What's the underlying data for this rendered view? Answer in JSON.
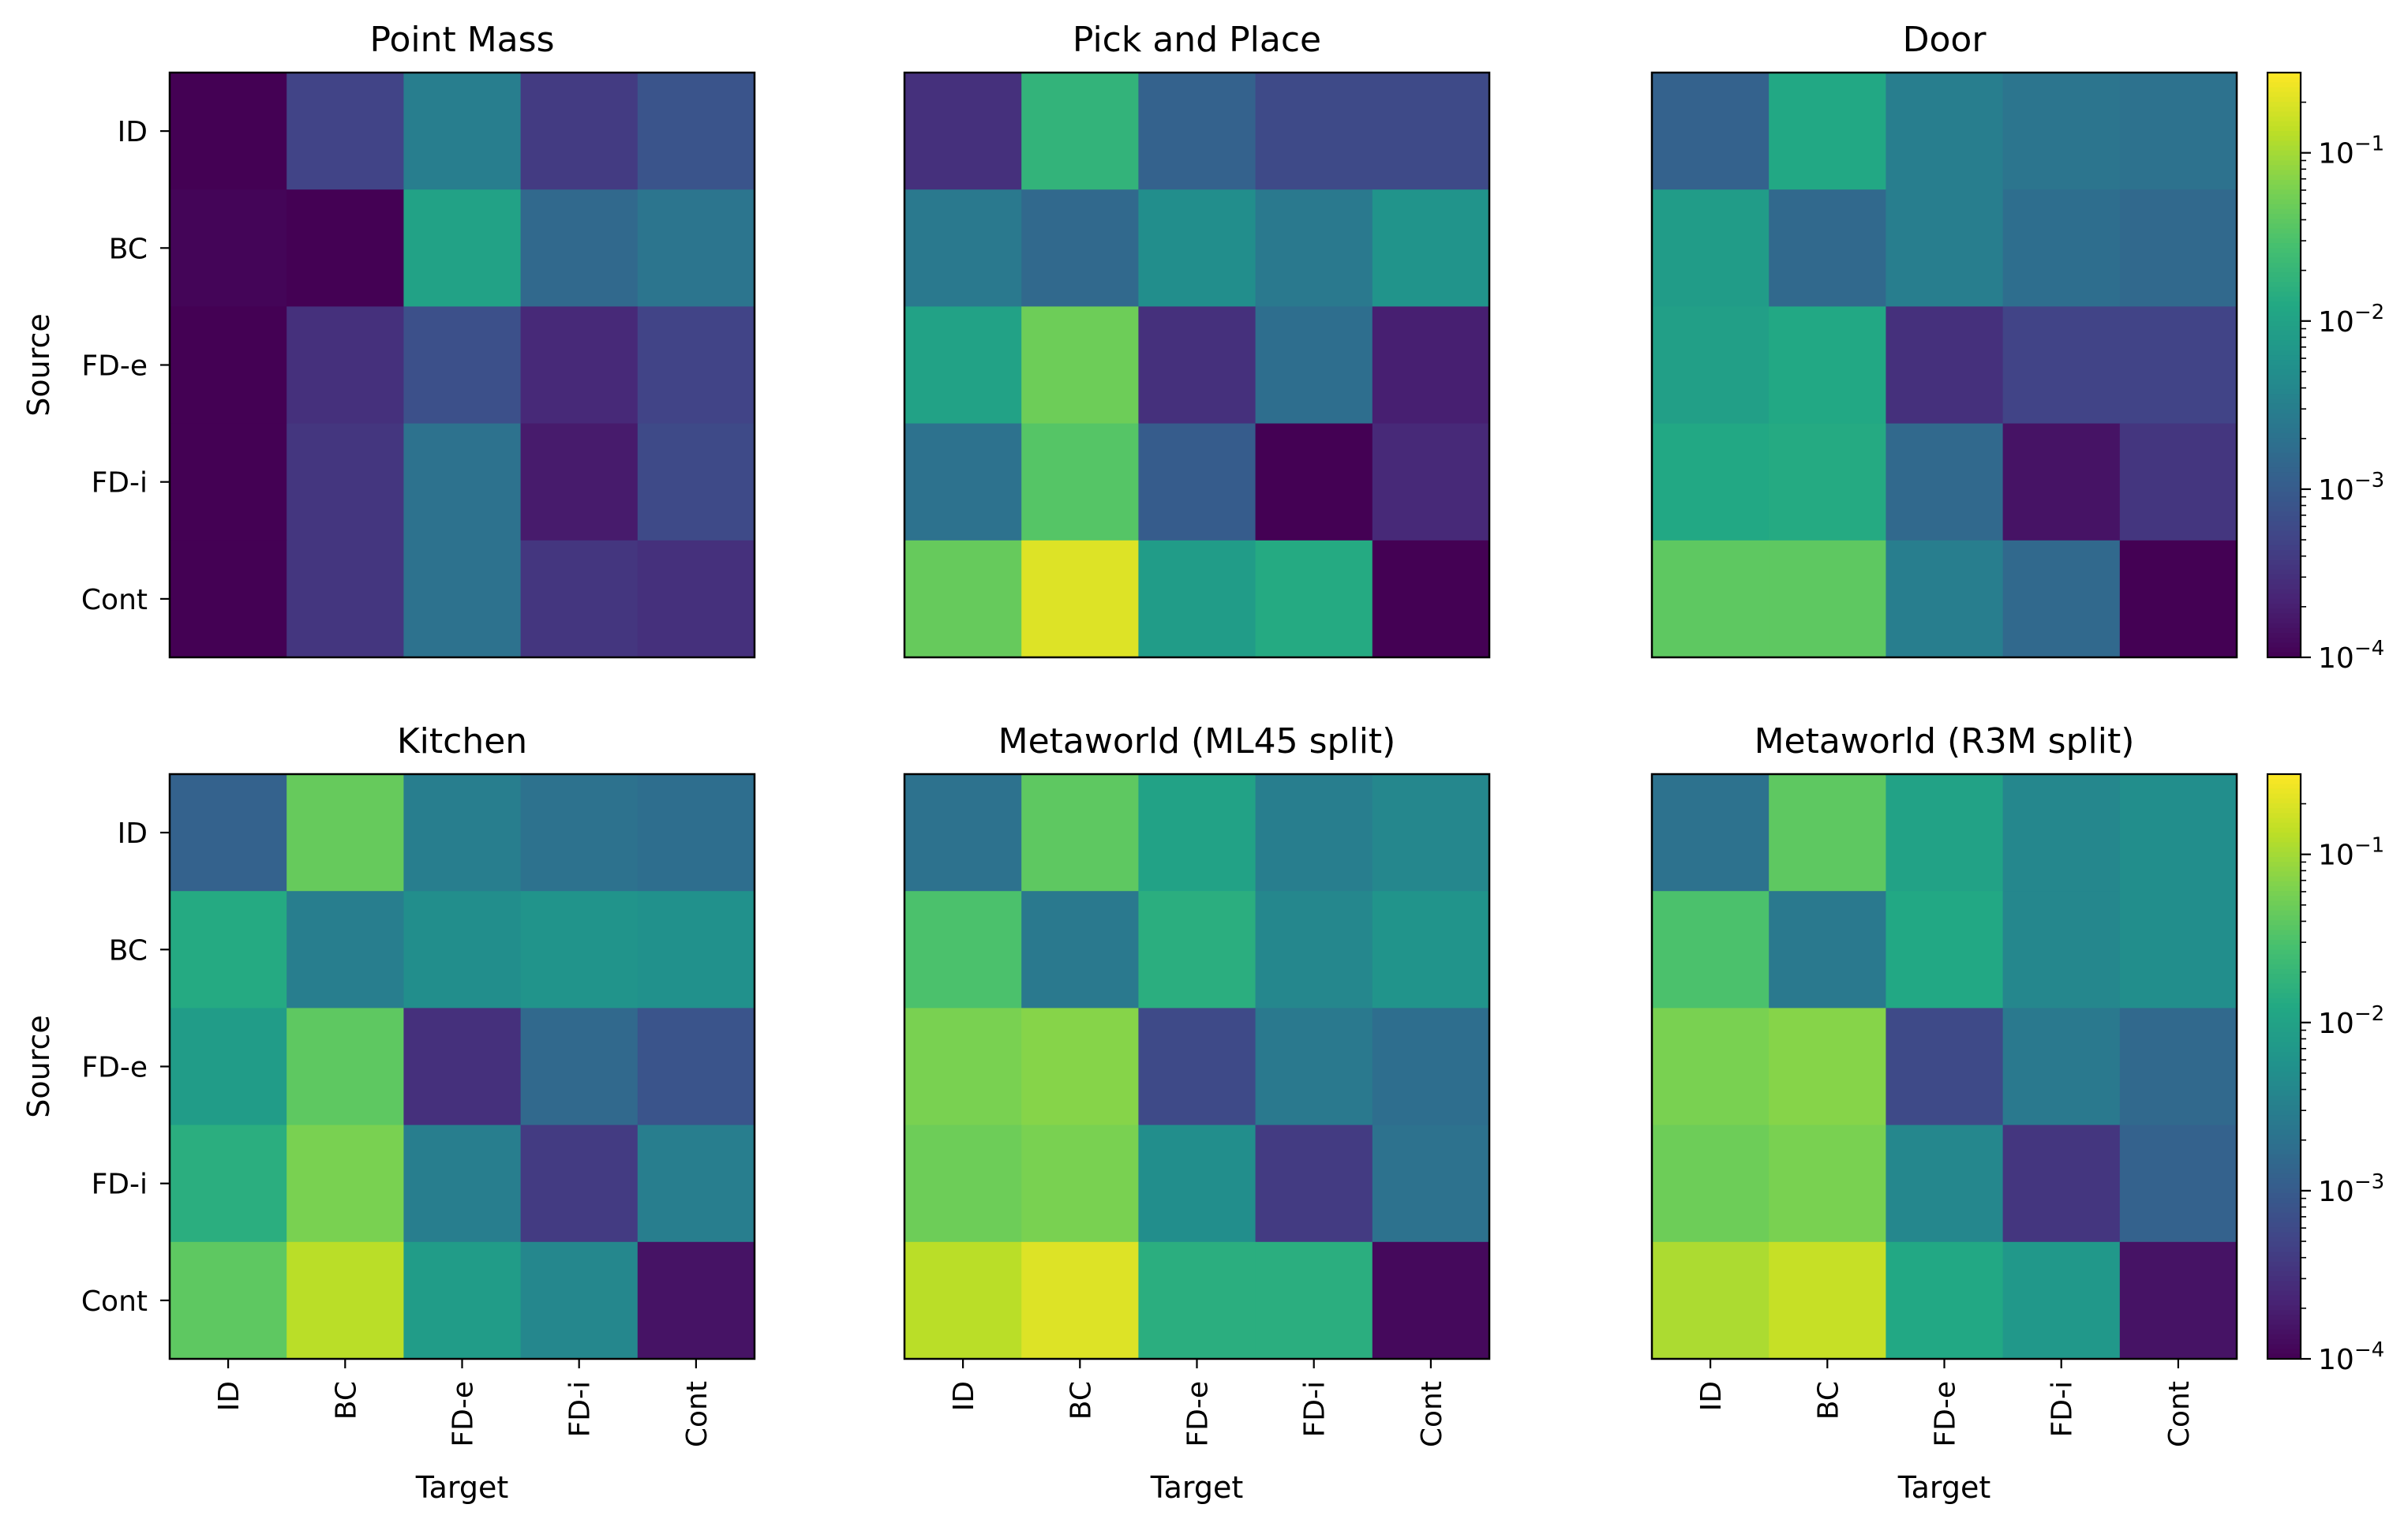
{
  "chart_data": [
    {
      "type": "heatmap",
      "title": "Point Mass",
      "xlabel": "",
      "ylabel": "Source",
      "x_categories": [
        "ID",
        "BC",
        "FD-e",
        "FD-i",
        "Cont"
      ],
      "y_categories": [
        "ID",
        "BC",
        "FD-e",
        "FD-i",
        "Cont"
      ],
      "scale": "log",
      "values": [
        [
          0.0001,
          0.0005,
          0.003,
          0.0004,
          0.0008
        ],
        [
          0.00011,
          0.0001,
          0.01,
          0.0015,
          0.0022
        ],
        [
          0.0001,
          0.0003,
          0.0007,
          0.00025,
          0.0005
        ],
        [
          0.0001,
          0.00035,
          0.002,
          0.00018,
          0.0006
        ],
        [
          0.0001,
          0.00035,
          0.002,
          0.00035,
          0.0003
        ]
      ]
    },
    {
      "type": "heatmap",
      "title": "Pick and Place",
      "xlabel": "",
      "ylabel": "",
      "x_categories": [
        "ID",
        "BC",
        "FD-e",
        "FD-i",
        "Cont"
      ],
      "y_categories": [
        "ID",
        "BC",
        "FD-e",
        "FD-i",
        "Cont"
      ],
      "scale": "log",
      "values": [
        [
          0.0003,
          0.018,
          0.0012,
          0.0006,
          0.0006
        ],
        [
          0.0025,
          0.0015,
          0.005,
          0.0025,
          0.006
        ],
        [
          0.01,
          0.05,
          0.0003,
          0.0018,
          0.0002
        ],
        [
          0.002,
          0.035,
          0.001,
          0.0001,
          0.00025
        ],
        [
          0.045,
          0.2,
          0.008,
          0.013,
          0.0001
        ]
      ]
    },
    {
      "type": "heatmap",
      "title": "Door",
      "xlabel": "",
      "ylabel": "",
      "x_categories": [
        "ID",
        "BC",
        "FD-e",
        "FD-i",
        "Cont"
      ],
      "y_categories": [
        "ID",
        "BC",
        "FD-e",
        "FD-i",
        "Cont"
      ],
      "scale": "log",
      "values": [
        [
          0.0012,
          0.012,
          0.003,
          0.0022,
          0.002
        ],
        [
          0.008,
          0.0015,
          0.003,
          0.0018,
          0.0015
        ],
        [
          0.009,
          0.012,
          0.0003,
          0.0005,
          0.0005
        ],
        [
          0.012,
          0.013,
          0.0015,
          0.00015,
          0.00035
        ],
        [
          0.04,
          0.04,
          0.003,
          0.0015,
          0.0001
        ]
      ]
    },
    {
      "type": "heatmap",
      "title": "Kitchen",
      "xlabel": "Target",
      "ylabel": "Source",
      "x_categories": [
        "ID",
        "BC",
        "FD-e",
        "FD-i",
        "Cont"
      ],
      "y_categories": [
        "ID",
        "BC",
        "FD-e",
        "FD-i",
        "Cont"
      ],
      "scale": "log",
      "values": [
        [
          0.0012,
          0.045,
          0.003,
          0.002,
          0.0018
        ],
        [
          0.013,
          0.003,
          0.005,
          0.006,
          0.0055
        ],
        [
          0.008,
          0.04,
          0.0003,
          0.0015,
          0.0008
        ],
        [
          0.015,
          0.06,
          0.003,
          0.0004,
          0.003
        ],
        [
          0.04,
          0.13,
          0.008,
          0.004,
          0.00015
        ]
      ]
    },
    {
      "type": "heatmap",
      "title": "Metaworld (ML45 split)",
      "xlabel": "Target",
      "ylabel": "",
      "x_categories": [
        "ID",
        "BC",
        "FD-e",
        "FD-i",
        "Cont"
      ],
      "y_categories": [
        "ID",
        "BC",
        "FD-e",
        "FD-i",
        "Cont"
      ],
      "scale": "log",
      "values": [
        [
          0.002,
          0.04,
          0.01,
          0.003,
          0.004
        ],
        [
          0.03,
          0.0025,
          0.015,
          0.004,
          0.006
        ],
        [
          0.06,
          0.07,
          0.0006,
          0.0025,
          0.0018
        ],
        [
          0.05,
          0.06,
          0.005,
          0.0004,
          0.002
        ],
        [
          0.13,
          0.2,
          0.015,
          0.015,
          0.00012
        ]
      ]
    },
    {
      "type": "heatmap",
      "title": "Metaworld (R3M split)",
      "xlabel": "Target",
      "ylabel": "",
      "x_categories": [
        "ID",
        "BC",
        "FD-e",
        "FD-i",
        "Cont"
      ],
      "y_categories": [
        "ID",
        "BC",
        "FD-e",
        "FD-i",
        "Cont"
      ],
      "scale": "log",
      "values": [
        [
          0.002,
          0.04,
          0.01,
          0.004,
          0.005
        ],
        [
          0.03,
          0.0025,
          0.012,
          0.004,
          0.005
        ],
        [
          0.06,
          0.07,
          0.0006,
          0.0025,
          0.0015
        ],
        [
          0.05,
          0.06,
          0.004,
          0.00035,
          0.0012
        ],
        [
          0.11,
          0.15,
          0.012,
          0.007,
          0.00015
        ]
      ]
    }
  ],
  "colorbar": {
    "colormap": "viridis",
    "scale": "log",
    "range": [
      0.0001,
      0.3
    ],
    "tick_values": [
      0.0001,
      0.001,
      0.01,
      0.1
    ],
    "tick_base": "10",
    "tick_exponents": [
      "−4",
      "−3",
      "−2",
      "−1"
    ]
  }
}
